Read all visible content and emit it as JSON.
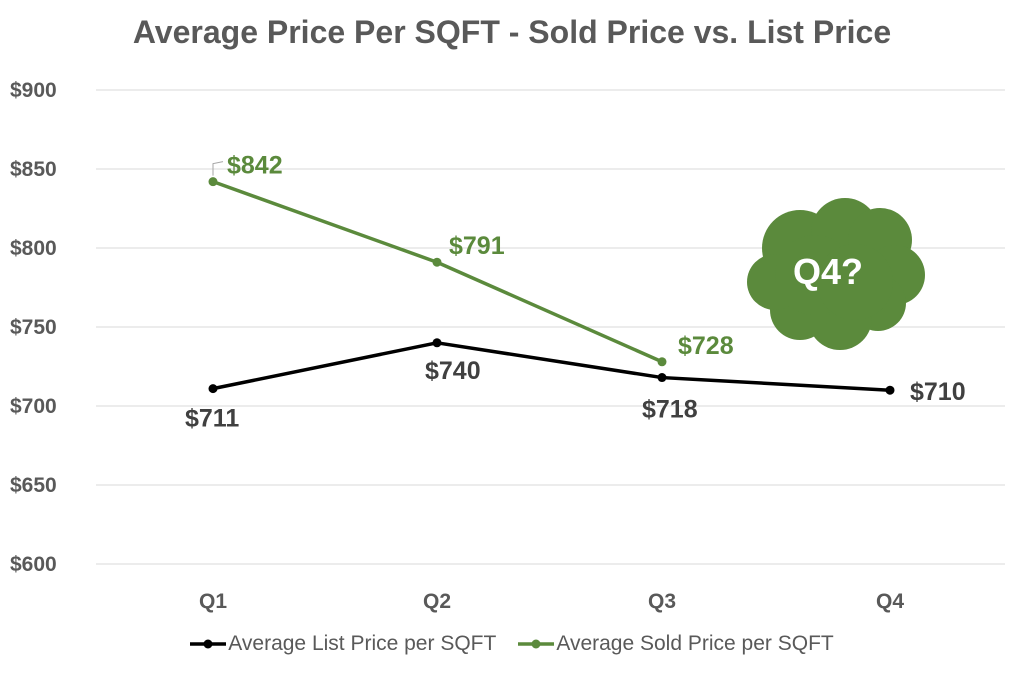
{
  "chart_data": {
    "type": "line",
    "title": "Average Price Per SQFT - Sold Price vs. List Price",
    "categories": [
      "Q1",
      "Q2",
      "Q3",
      "Q4"
    ],
    "ylim": [
      600,
      900
    ],
    "y_ticks": [
      600,
      650,
      700,
      750,
      800,
      850,
      900
    ],
    "y_tick_labels": [
      "$600",
      "$650",
      "$700",
      "$750",
      "$800",
      "$850",
      "$900"
    ],
    "grid": true,
    "legend_position": "bottom",
    "series": [
      {
        "name": "Average List Price per SQFT",
        "color": "#000000",
        "values": [
          711,
          740,
          718,
          710
        ],
        "labels": [
          "$711",
          "$740",
          "$718",
          "$710"
        ]
      },
      {
        "name": "Average Sold Price per SQFT",
        "color": "#5b8a3c",
        "values": [
          842,
          791,
          728,
          null
        ],
        "labels": [
          "$842",
          "$791",
          "$728",
          null
        ]
      }
    ],
    "annotation": {
      "text": "Q4?",
      "shape": "cloud",
      "color": "#5b8a3c"
    }
  }
}
